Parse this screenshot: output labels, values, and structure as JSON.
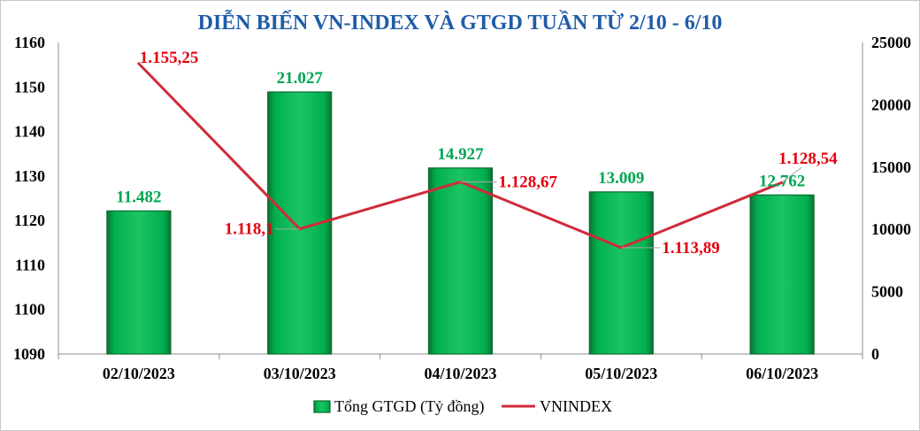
{
  "chart_data": {
    "type": "bar",
    "title": "DIỄN BIẾN VN-INDEX VÀ GTGD TUẦN TỪ 2/10 - 6/10",
    "title_color": "#1f5ca8",
    "categories": [
      "02/10/2023",
      "03/10/2023",
      "04/10/2023",
      "05/10/2023",
      "06/10/2023"
    ],
    "series": [
      {
        "name": "Tổng GTGD (Tỷ đồng)",
        "type": "bar",
        "y_axis": "right",
        "values": [
          11482,
          21027,
          14927,
          13009,
          12762
        ],
        "data_labels": [
          "11.482",
          "21.027",
          "14.927",
          "13.009",
          "12.762"
        ],
        "color": "#00b050",
        "label_color": "#00a651"
      },
      {
        "name": "VNINDEX",
        "type": "line",
        "y_axis": "left",
        "values": [
          1155.25,
          1118.1,
          1128.67,
          1113.89,
          1128.54
        ],
        "data_labels": [
          "1.155,25",
          "1.118,1",
          "1.128,67",
          "1.113,89",
          "1.128,54"
        ],
        "color": "#d02b3a",
        "label_color": "#e3000f"
      }
    ],
    "y_left": {
      "ylim": [
        1090,
        1160
      ],
      "ticks": [
        1160,
        1150,
        1140,
        1130,
        1120,
        1110,
        1100,
        1090
      ]
    },
    "y_right": {
      "ylim": [
        0,
        25000
      ],
      "ticks": [
        25000,
        20000,
        15000,
        10000,
        5000,
        0
      ]
    },
    "grid": false,
    "legend_position": "bottom"
  }
}
